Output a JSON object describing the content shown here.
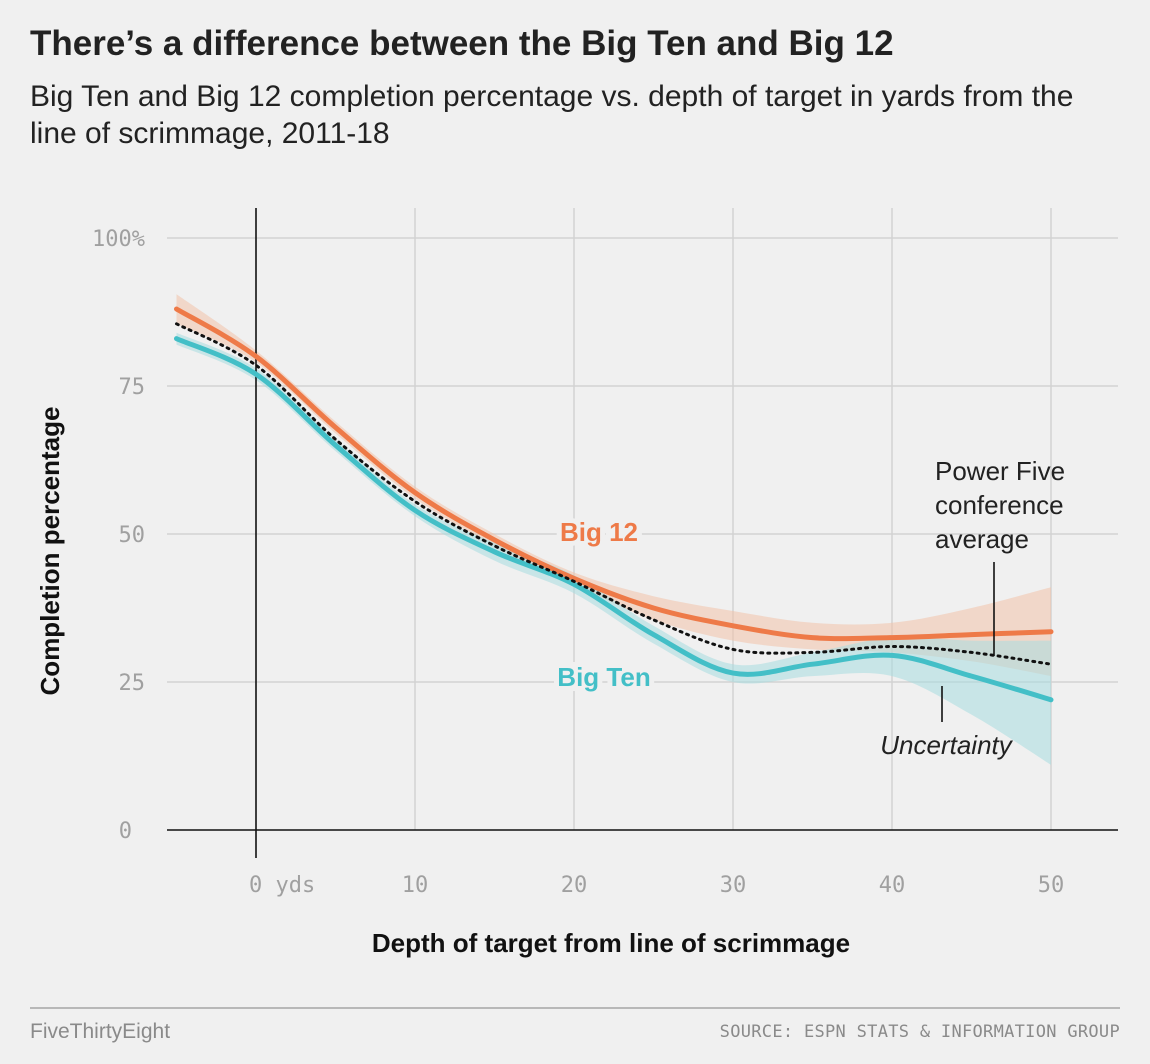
{
  "header": {
    "title": "There’s a difference between the Big Ten and Big 12",
    "subtitle": "Big Ten and Big 12 completion percentage vs. depth of target in yards from the line of scrimmage, 2011-18"
  },
  "footer": {
    "brand": "FiveThirtyEight",
    "source": "SOURCE: ESPN STATS & INFORMATION GROUP"
  },
  "colors": {
    "background": "#f0f0f0",
    "grid": "#d2d2d2",
    "big12": "#ee7a48",
    "big12_band": "#f2c2aa",
    "bigten": "#43bfc7",
    "bigten_band": "#a8dde0",
    "average": "#111111"
  },
  "chart_data": {
    "type": "line",
    "title": "There’s a difference between the Big Ten and Big 12",
    "xlabel": "Depth of target from line of scrimmage",
    "ylabel": "Completion percentage",
    "xlim": [
      -5.5,
      54
    ],
    "ylim": [
      0,
      100
    ],
    "x_ticks": [
      {
        "value": 0,
        "label": "0 yds"
      },
      {
        "value": 10,
        "label": "10"
      },
      {
        "value": 20,
        "label": "20"
      },
      {
        "value": 30,
        "label": "30"
      },
      {
        "value": 40,
        "label": "40"
      },
      {
        "value": 50,
        "label": "50"
      }
    ],
    "y_ticks": [
      {
        "value": 0,
        "label": "0"
      },
      {
        "value": 25,
        "label": "25"
      },
      {
        "value": 50,
        "label": "50"
      },
      {
        "value": 75,
        "label": "75"
      },
      {
        "value": 100,
        "label": "100%"
      }
    ],
    "grid": true,
    "x": [
      -5,
      0,
      5,
      10,
      15,
      20,
      25,
      30,
      35,
      40,
      45,
      50
    ],
    "series": [
      {
        "name": "Big 12",
        "label": "Big 12",
        "values": [
          88,
          80,
          68,
          57,
          49,
          42.5,
          37.5,
          34.5,
          32.5,
          32.5,
          33,
          33.5
        ],
        "lower": [
          85.5,
          79,
          67,
          56,
          48,
          41.5,
          35.5,
          32,
          30.5,
          30,
          28.5,
          26
        ],
        "upper": [
          90.5,
          81,
          69,
          58,
          50,
          43.5,
          39.5,
          37,
          35,
          35,
          37.5,
          41
        ]
      },
      {
        "name": "Big Ten",
        "label": "Big Ten",
        "values": [
          83,
          77,
          65,
          54,
          47,
          41.5,
          33,
          26.5,
          28,
          29.5,
          26,
          22
        ],
        "lower": [
          82,
          76,
          64,
          53,
          45.5,
          40,
          31.5,
          25,
          26,
          26,
          19.5,
          11
        ],
        "upper": [
          84,
          78,
          66,
          55,
          48.5,
          43,
          34.5,
          28,
          30,
          32.5,
          32,
          32
        ]
      },
      {
        "name": "Power Five conference average",
        "label": "Power Five conference average",
        "values": [
          85.5,
          78.5,
          66,
          55.5,
          48,
          42,
          35.5,
          30.5,
          30,
          31,
          30,
          28
        ]
      }
    ],
    "annotations": [
      {
        "text": "Power Five",
        "target": "average"
      },
      {
        "text": "conference",
        "target": "average"
      },
      {
        "text": "average",
        "target": "average"
      },
      {
        "text": "Uncertainty",
        "target": "band"
      }
    ]
  }
}
